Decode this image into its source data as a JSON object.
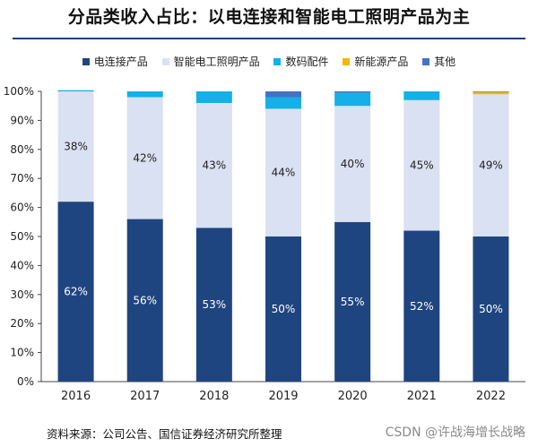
{
  "title": "分品类收入占比：以电连接和智能电工照明产品为主",
  "legend": [
    {
      "name": "电连接产品",
      "color": "#1f4580"
    },
    {
      "name": "智能电工照明产品",
      "color": "#d9e1f2"
    },
    {
      "name": "数码配件",
      "color": "#15b0e8"
    },
    {
      "name": "新能源产品",
      "color": "#f2b800"
    },
    {
      "name": "其他",
      "color": "#4472c4"
    }
  ],
  "chart_data": {
    "type": "bar",
    "stacked": true,
    "categories": [
      "2016",
      "2017",
      "2018",
      "2019",
      "2020",
      "2021",
      "2022"
    ],
    "series": [
      {
        "name": "电连接产品",
        "color": "#1f4580",
        "values": [
          62,
          56,
          53,
          50,
          55,
          52,
          50
        ]
      },
      {
        "name": "智能电工照明产品",
        "color": "#d9e1f2",
        "values": [
          38,
          42,
          43,
          44,
          40,
          45,
          49
        ]
      },
      {
        "name": "数码配件",
        "color": "#15b0e8",
        "values": [
          0.4,
          2,
          4,
          4,
          4.5,
          3,
          0
        ]
      },
      {
        "name": "新能源产品",
        "color": "#f2b800",
        "values": [
          0,
          0,
          0,
          0,
          0,
          0,
          0.8
        ]
      },
      {
        "name": "其他",
        "color": "#4472c4",
        "values": [
          0,
          0,
          0,
          2,
          0.5,
          0,
          0.2
        ]
      }
    ],
    "data_labels": {
      "电连接产品": [
        "62%",
        "56%",
        "53%",
        "50%",
        "55%",
        "52%",
        "50%"
      ],
      "智能电工照明产品": [
        "38%",
        "42%",
        "43%",
        "44%",
        "40%",
        "45%",
        "49%"
      ]
    },
    "ylim": [
      0,
      100
    ],
    "yticks": [
      "0%",
      "10%",
      "20%",
      "30%",
      "40%",
      "50%",
      "60%",
      "70%",
      "80%",
      "90%",
      "100%"
    ],
    "legend_position": "top"
  },
  "source": "资料来源：公司公告、国信证券经济研究所整理",
  "watermark": "CSDN @许战海增长战略"
}
